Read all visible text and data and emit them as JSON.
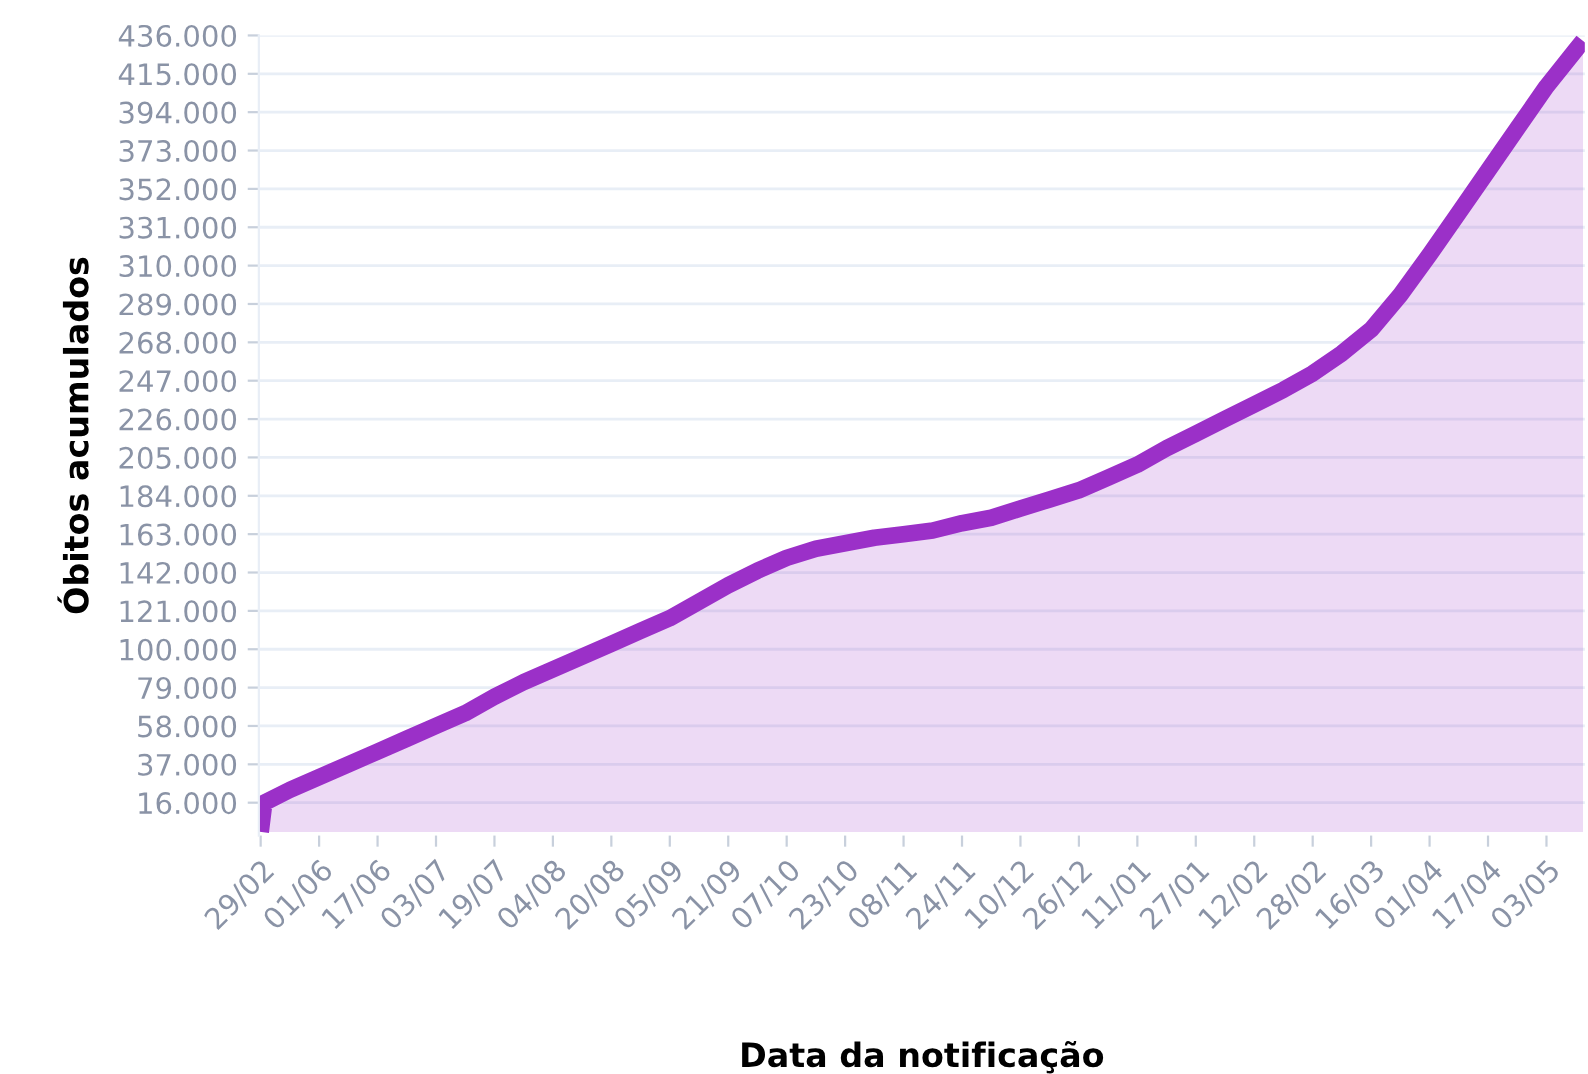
{
  "chart_data": {
    "type": "area",
    "xlabel": "Data da notificação",
    "ylabel": "Óbitos acumulados",
    "categories": [
      "29/02",
      null,
      null,
      null,
      null,
      null,
      null,
      null,
      null,
      null,
      null,
      null,
      null,
      null,
      null,
      null,
      "01/06",
      null,
      null,
      null,
      null,
      null,
      null,
      null,
      null,
      null,
      null,
      null,
      null,
      null,
      null,
      null,
      "17/06",
      null,
      null,
      null,
      null,
      null,
      null,
      null,
      null,
      null,
      null,
      null,
      null,
      null,
      null,
      null,
      "03/07",
      null,
      null,
      null,
      null,
      null,
      null,
      null,
      null,
      null,
      null,
      null,
      null,
      null,
      null,
      null,
      "19/07",
      null,
      null,
      null,
      null,
      null,
      null,
      null,
      null,
      null,
      null,
      null,
      null,
      null,
      null,
      null,
      "04/08",
      null,
      null,
      null,
      null,
      null,
      null,
      null,
      null,
      null,
      null,
      null,
      null,
      null,
      null,
      null,
      "20/08",
      null,
      null,
      null,
      null,
      null,
      null,
      null,
      null,
      null,
      null,
      null,
      null,
      null,
      null,
      null,
      "05/09",
      null,
      null,
      null,
      null,
      null,
      null,
      null,
      null,
      null,
      null,
      null,
      null,
      null,
      null,
      null,
      "21/09",
      null,
      null,
      null,
      null,
      null,
      null,
      null,
      null,
      null,
      null,
      null,
      null,
      null,
      null,
      null,
      "07/10",
      null,
      null,
      null,
      null,
      null,
      null,
      null,
      null,
      null,
      null,
      null,
      null,
      null,
      null,
      null,
      "23/10",
      null,
      null,
      null,
      null,
      null,
      null,
      null,
      null,
      null,
      null,
      null,
      null,
      null,
      null,
      null,
      "08/11",
      null,
      null,
      null,
      null,
      null,
      null,
      null,
      null,
      null,
      null,
      null,
      null,
      null,
      null,
      null,
      "24/11",
      null,
      null,
      null,
      null,
      null,
      null,
      null,
      null,
      null,
      null,
      null,
      null,
      null,
      null,
      null,
      "10/12",
      null,
      null,
      null,
      null,
      null,
      null,
      null,
      null,
      null,
      null,
      null,
      null,
      null,
      null,
      null,
      "26/12",
      null,
      null,
      null,
      null,
      null,
      null,
      null,
      null,
      null,
      null,
      null,
      null,
      null,
      null,
      null,
      "11/01",
      null,
      null,
      null,
      null,
      null,
      null,
      null,
      null,
      null,
      null,
      null,
      null,
      null,
      null,
      null,
      "27/01",
      null,
      null,
      null,
      null,
      null,
      null,
      null,
      null,
      null,
      null,
      null,
      null,
      null,
      null,
      null,
      "12/02",
      null,
      null,
      null,
      null,
      null,
      null,
      null,
      null,
      null,
      null,
      null,
      null,
      null,
      null,
      null,
      "28/02",
      null,
      null,
      null,
      null,
      null,
      null,
      null,
      null,
      null,
      null,
      null,
      null,
      null,
      null,
      null,
      "16/03",
      null,
      null,
      null,
      null,
      null,
      null,
      null,
      null,
      null,
      null,
      null,
      null,
      null,
      null,
      null,
      "01/04",
      null,
      null,
      null,
      null,
      null,
      null,
      null,
      null,
      null,
      null,
      null,
      null,
      null,
      null,
      null,
      "17/04",
      null,
      null,
      null,
      null,
      null,
      null,
      null,
      null,
      null,
      null,
      null,
      null,
      null,
      null,
      null,
      "03/05",
      null,
      null,
      null,
      null,
      null,
      null,
      null,
      null,
      null,
      null
    ],
    "series": [
      {
        "color": "#9b30c8",
        "values": [
          0,
          16000,
          null,
          null,
          null,
          null,
          null,
          null,
          23000,
          null,
          null,
          null,
          null,
          null,
          null,
          null,
          30000,
          null,
          null,
          null,
          null,
          null,
          null,
          null,
          37000,
          null,
          null,
          null,
          null,
          null,
          null,
          null,
          44000,
          null,
          null,
          null,
          null,
          null,
          null,
          null,
          51000,
          null,
          null,
          null,
          null,
          null,
          null,
          null,
          58000,
          null,
          null,
          null,
          null,
          null,
          null,
          null,
          65000,
          null,
          null,
          null,
          null,
          null,
          null,
          null,
          74000,
          null,
          null,
          null,
          null,
          null,
          null,
          null,
          82000,
          null,
          null,
          null,
          null,
          null,
          null,
          null,
          89000,
          null,
          null,
          null,
          null,
          null,
          null,
          null,
          96000,
          null,
          null,
          null,
          null,
          null,
          null,
          null,
          103000,
          null,
          null,
          null,
          null,
          null,
          null,
          null,
          110000,
          null,
          null,
          null,
          null,
          null,
          null,
          null,
          117000,
          null,
          null,
          null,
          null,
          null,
          null,
          null,
          126000,
          null,
          null,
          null,
          null,
          null,
          null,
          null,
          135000,
          null,
          null,
          null,
          null,
          null,
          null,
          null,
          143000,
          null,
          null,
          null,
          null,
          null,
          null,
          null,
          150000,
          null,
          null,
          null,
          null,
          null,
          null,
          null,
          155000,
          null,
          null,
          null,
          null,
          null,
          null,
          null,
          158000,
          null,
          null,
          null,
          null,
          null,
          null,
          null,
          161000,
          null,
          null,
          null,
          null,
          null,
          null,
          null,
          163000,
          null,
          null,
          null,
          null,
          null,
          null,
          null,
          165000,
          null,
          null,
          null,
          null,
          null,
          null,
          null,
          169000,
          null,
          null,
          null,
          null,
          null,
          null,
          null,
          172000,
          null,
          null,
          null,
          null,
          null,
          null,
          null,
          177000,
          null,
          null,
          null,
          null,
          null,
          null,
          null,
          182000,
          null,
          null,
          null,
          null,
          null,
          null,
          null,
          187000,
          null,
          null,
          null,
          null,
          null,
          null,
          null,
          194000,
          null,
          null,
          null,
          null,
          null,
          null,
          null,
          201000,
          null,
          null,
          null,
          null,
          null,
          null,
          null,
          210000,
          null,
          null,
          null,
          null,
          null,
          null,
          null,
          218000,
          null,
          null,
          null,
          null,
          null,
          null,
          null,
          226000,
          null,
          null,
          null,
          null,
          null,
          null,
          null,
          234000,
          null,
          null,
          null,
          null,
          null,
          null,
          null,
          242000,
          null,
          null,
          null,
          null,
          null,
          null,
          null,
          251000,
          null,
          null,
          null,
          null,
          null,
          null,
          null,
          262000,
          null,
          null,
          null,
          null,
          null,
          null,
          null,
          275000,
          null,
          null,
          null,
          null,
          null,
          null,
          null,
          294000,
          null,
          null,
          null,
          null,
          null,
          null,
          null,
          316000,
          null,
          null,
          null,
          null,
          null,
          null,
          null,
          339000,
          null,
          null,
          null,
          null,
          null,
          null,
          null,
          362000,
          null,
          null,
          null,
          null,
          null,
          null,
          null,
          385000,
          null,
          null,
          null,
          null,
          null,
          null,
          null,
          408000,
          null,
          null,
          null,
          null,
          null,
          null,
          null,
          428000,
          null,
          433000
        ]
      }
    ],
    "ylim": [
      -2000,
      436000
    ],
    "yticks": [
      {
        "value": 16000,
        "label": "16.000"
      },
      {
        "value": 37000,
        "label": "37.000"
      },
      {
        "value": 58000,
        "label": "58.000"
      },
      {
        "value": 79000,
        "label": "79.000"
      },
      {
        "value": 100000,
        "label": "100.000"
      },
      {
        "value": 121000,
        "label": "121.000"
      },
      {
        "value": 142000,
        "label": "142.000"
      },
      {
        "value": 163000,
        "label": "163.000"
      },
      {
        "value": 184000,
        "label": "184.000"
      },
      {
        "value": 205000,
        "label": "205.000"
      },
      {
        "value": 226000,
        "label": "226.000"
      },
      {
        "value": 247000,
        "label": "247.000"
      },
      {
        "value": 268000,
        "label": "268.000"
      },
      {
        "value": 289000,
        "label": "289.000"
      },
      {
        "value": 310000,
        "label": "310.000"
      },
      {
        "value": 331000,
        "label": "331.000"
      },
      {
        "value": 352000,
        "label": "352.000"
      },
      {
        "value": 373000,
        "label": "373.000"
      },
      {
        "value": 394000,
        "label": "394.000"
      },
      {
        "value": 415000,
        "label": "415.000"
      },
      {
        "value": 436000,
        "label": "436.000"
      }
    ],
    "grid": "y",
    "line_style": "solid"
  }
}
